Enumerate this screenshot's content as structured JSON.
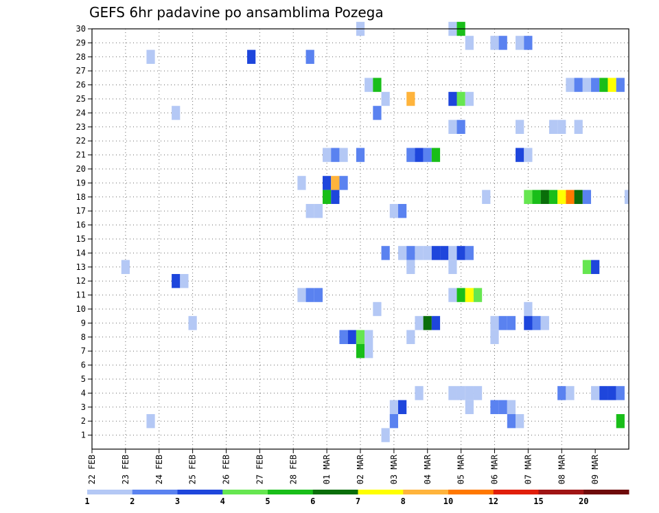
{
  "chart_data": {
    "type": "heatmap",
    "title": "GEFS 6hr padavine po ansamblima Pozega",
    "xlabel": "",
    "ylabel": "",
    "x_axis": {
      "start": "2024-02-22T00:00",
      "end": "2024-03-09T00:00",
      "step_hours": 6,
      "tick_labels": [
        "22 FEB",
        "23 FEB",
        "24 FEB",
        "25 FEB",
        "26 FEB",
        "27 FEB",
        "28 FEB",
        "01 MAR",
        "02 MAR",
        "03 MAR",
        "04 MAR",
        "05 MAR",
        "06 MAR",
        "07 MAR",
        "08 MAR",
        "09 MAR"
      ]
    },
    "y_axis": {
      "min": 1,
      "max": 30,
      "tick_labels": [
        "1",
        "2",
        "3",
        "4",
        "5",
        "6",
        "7",
        "8",
        "9",
        "10",
        "11",
        "12",
        "13",
        "14",
        "15",
        "16",
        "17",
        "18",
        "19",
        "20",
        "21",
        "22",
        "23",
        "24",
        "25",
        "26",
        "27",
        "28",
        "29",
        "30"
      ]
    },
    "grid": "dotted",
    "legend": {
      "position": "bottom",
      "labels": [
        "1",
        "2",
        "3",
        "4",
        "5",
        "6",
        "7",
        "8",
        "10",
        "12",
        "15",
        "20"
      ],
      "colors": [
        "#b4c8f5",
        "#5a82f0",
        "#1e46dc",
        "#66e650",
        "#19be19",
        "#0a6e0a",
        "#ffff00",
        "#ffb43c",
        "#ff7800",
        "#e11e0a",
        "#a01414",
        "#6e0a0a"
      ]
    },
    "cells": [
      [
        30,
        "03-01T00",
        1
      ],
      [
        30,
        "03-03T18",
        1
      ],
      [
        30,
        "03-04T00",
        5
      ],
      [
        29,
        "03-04T06",
        1
      ],
      [
        29,
        "03-05T00",
        1
      ],
      [
        29,
        "03-05T06",
        2
      ],
      [
        29,
        "03-05T18",
        1
      ],
      [
        29,
        "03-06T00",
        2
      ],
      [
        28,
        "02-23T18",
        1
      ],
      [
        28,
        "02-26T18",
        3
      ],
      [
        28,
        "02-28T12",
        2
      ],
      [
        26,
        "03-01T06",
        1
      ],
      [
        26,
        "03-01T12",
        5
      ],
      [
        26,
        "03-07T06",
        1
      ],
      [
        26,
        "03-07T12",
        2
      ],
      [
        26,
        "03-07T18",
        1
      ],
      [
        26,
        "03-08T00",
        2
      ],
      [
        26,
        "03-08T06",
        5
      ],
      [
        26,
        "03-08T12",
        7
      ],
      [
        26,
        "03-08T18",
        2
      ],
      [
        25,
        "03-01T18",
        1
      ],
      [
        25,
        "03-02T12",
        8
      ],
      [
        25,
        "03-03T18",
        3
      ],
      [
        25,
        "03-04T00",
        4
      ],
      [
        25,
        "03-04T06",
        1
      ],
      [
        24,
        "02-24T12",
        1
      ],
      [
        24,
        "03-01T12",
        2
      ],
      [
        23,
        "03-03T18",
        1
      ],
      [
        23,
        "03-04T00",
        2
      ],
      [
        23,
        "03-05T18",
        1
      ],
      [
        23,
        "03-06T18",
        1
      ],
      [
        23,
        "03-07T00",
        1
      ],
      [
        23,
        "03-07T12",
        1
      ],
      [
        21,
        "02-29T00",
        1
      ],
      [
        21,
        "02-29T06",
        2
      ],
      [
        21,
        "02-29T12",
        1
      ],
      [
        21,
        "03-01T00",
        2
      ],
      [
        21,
        "03-02T12",
        2
      ],
      [
        21,
        "03-02T18",
        3
      ],
      [
        21,
        "03-03T00",
        2
      ],
      [
        21,
        "03-03T06",
        5
      ],
      [
        21,
        "03-05T18",
        3
      ],
      [
        21,
        "03-06T00",
        1
      ],
      [
        19,
        "02-28T06",
        1
      ],
      [
        19,
        "02-29T00",
        3
      ],
      [
        19,
        "02-29T06",
        9
      ],
      [
        19,
        "02-29T12",
        2
      ],
      [
        18,
        "02-29T00",
        5
      ],
      [
        18,
        "02-29T06",
        3
      ],
      [
        18,
        "03-04T18",
        1
      ],
      [
        18,
        "03-06T00",
        4
      ],
      [
        18,
        "03-06T06",
        5
      ],
      [
        18,
        "03-06T12",
        6
      ],
      [
        18,
        "03-06T18",
        5
      ],
      [
        18,
        "03-07T00",
        7
      ],
      [
        18,
        "03-07T06",
        10
      ],
      [
        18,
        "03-07T12",
        6
      ],
      [
        18,
        "03-07T18",
        2
      ],
      [
        18,
        "03-09T00",
        1
      ],
      [
        17,
        "02-28T12",
        1
      ],
      [
        17,
        "02-28T18",
        1
      ],
      [
        17,
        "03-02T00",
        1
      ],
      [
        17,
        "03-02T06",
        2
      ],
      [
        14,
        "03-01T18",
        2
      ],
      [
        14,
        "03-02T06",
        1
      ],
      [
        14,
        "03-02T12",
        2
      ],
      [
        14,
        "03-02T18",
        1
      ],
      [
        14,
        "03-03T00",
        1
      ],
      [
        14,
        "03-03T06",
        3
      ],
      [
        14,
        "03-03T12",
        3
      ],
      [
        14,
        "03-03T18",
        1
      ],
      [
        14,
        "03-04T00",
        3
      ],
      [
        14,
        "03-04T06",
        2
      ],
      [
        13,
        "02-23T00",
        1
      ],
      [
        13,
        "03-02T12",
        1
      ],
      [
        13,
        "03-03T18",
        1
      ],
      [
        13,
        "03-07T18",
        4
      ],
      [
        13,
        "03-08T00",
        3
      ],
      [
        12,
        "02-24T12",
        3
      ],
      [
        12,
        "02-24T18",
        1
      ],
      [
        11,
        "02-28T06",
        1
      ],
      [
        11,
        "02-28T12",
        2
      ],
      [
        11,
        "02-28T18",
        2
      ],
      [
        11,
        "03-03T18",
        1
      ],
      [
        11,
        "03-04T00",
        5
      ],
      [
        11,
        "03-04T06",
        7
      ],
      [
        11,
        "03-04T12",
        4
      ],
      [
        10,
        "03-01T12",
        1
      ],
      [
        10,
        "03-06T00",
        1
      ],
      [
        9,
        "02-25T00",
        1
      ],
      [
        9,
        "03-02T18",
        1
      ],
      [
        9,
        "03-03T00",
        6
      ],
      [
        9,
        "03-03T06",
        3
      ],
      [
        9,
        "03-05T00",
        1
      ],
      [
        9,
        "03-05T06",
        2
      ],
      [
        9,
        "03-05T12",
        2
      ],
      [
        9,
        "03-06T00",
        3
      ],
      [
        9,
        "03-06T06",
        2
      ],
      [
        9,
        "03-06T12",
        1
      ],
      [
        8,
        "02-29T12",
        2
      ],
      [
        8,
        "02-29T18",
        3
      ],
      [
        8,
        "03-01T00",
        4
      ],
      [
        8,
        "03-01T06",
        1
      ],
      [
        8,
        "03-02T12",
        1
      ],
      [
        8,
        "03-05T00",
        1
      ],
      [
        7,
        "03-01T00",
        5
      ],
      [
        7,
        "03-01T06",
        1
      ],
      [
        4,
        "03-02T18",
        1
      ],
      [
        4,
        "03-03T18",
        1
      ],
      [
        4,
        "03-04T00",
        1
      ],
      [
        4,
        "03-04T06",
        1
      ],
      [
        4,
        "03-04T12",
        1
      ],
      [
        4,
        "03-07T00",
        2
      ],
      [
        4,
        "03-07T06",
        1
      ],
      [
        4,
        "03-08T00",
        1
      ],
      [
        4,
        "03-08T06",
        3
      ],
      [
        4,
        "03-08T12",
        3
      ],
      [
        4,
        "03-08T18",
        2
      ],
      [
        3,
        "03-02T00",
        1
      ],
      [
        3,
        "03-02T06",
        3
      ],
      [
        3,
        "03-04T06",
        1
      ],
      [
        3,
        "03-05T00",
        2
      ],
      [
        3,
        "03-05T06",
        2
      ],
      [
        3,
        "03-05T12",
        1
      ],
      [
        2,
        "02-23T18",
        1
      ],
      [
        2,
        "03-02T00",
        2
      ],
      [
        2,
        "03-05T12",
        2
      ],
      [
        2,
        "03-05T18",
        1
      ],
      [
        2,
        "03-08T18",
        5
      ],
      [
        1,
        "03-01T18",
        1
      ]
    ]
  }
}
